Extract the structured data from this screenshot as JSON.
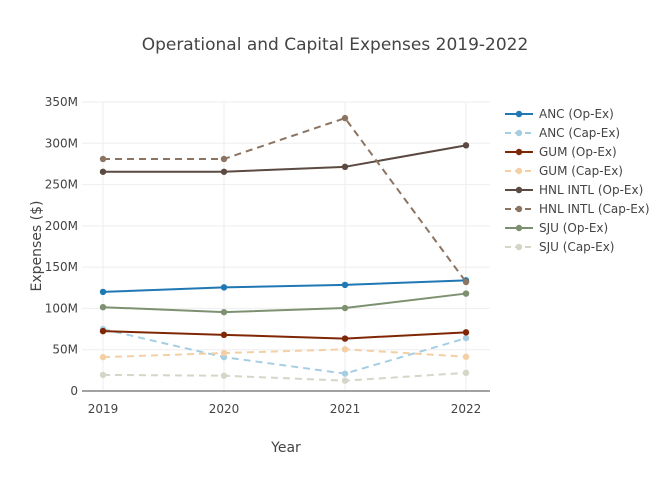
{
  "chart_data": {
    "type": "line",
    "title": "Operational and Capital Expenses 2019-2022",
    "xlabel": "Year",
    "ylabel": "Expenses ($)",
    "x": [
      2019,
      2020,
      2021,
      2022
    ],
    "x_tick_labels": [
      "2019",
      "2020",
      "2021",
      "2022"
    ],
    "ylim": [
      0,
      350000000
    ],
    "y_ticks": [
      0,
      50000000,
      100000000,
      150000000,
      200000000,
      250000000,
      300000000,
      350000000
    ],
    "y_tick_labels": [
      "0",
      "50M",
      "100M",
      "150M",
      "200M",
      "250M",
      "300M",
      "350M"
    ],
    "grid": true,
    "legend_position": "right",
    "series": [
      {
        "name": "ANC (Op-Ex)",
        "color": "#1f77b4",
        "dash": "solid",
        "values": [
          120000000,
          125500000,
          128500000,
          134000000
        ]
      },
      {
        "name": "ANC (Cap-Ex)",
        "color": "#a6cee3",
        "dash": "dashed",
        "values": [
          75000000,
          41000000,
          21000000,
          64000000
        ]
      },
      {
        "name": "GUM (Op-Ex)",
        "color": "#7f2704",
        "dash": "solid",
        "values": [
          72500000,
          68000000,
          63500000,
          71000000
        ]
      },
      {
        "name": "GUM (Cap-Ex)",
        "color": "#f4cfa3",
        "dash": "dashed",
        "values": [
          41000000,
          46000000,
          50500000,
          41500000
        ]
      },
      {
        "name": "HNL INTL (Op-Ex)",
        "color": "#5b4a42",
        "dash": "solid",
        "values": [
          265500000,
          265500000,
          271500000,
          297500000
        ]
      },
      {
        "name": "HNL INTL (Cap-Ex)",
        "color": "#8c7463",
        "dash": "dashed",
        "values": [
          281000000,
          281000000,
          330500000,
          132000000
        ]
      },
      {
        "name": "SJU (Op-Ex)",
        "color": "#7d9171",
        "dash": "solid",
        "values": [
          101500000,
          95500000,
          100500000,
          118000000
        ]
      },
      {
        "name": "SJU (Cap-Ex)",
        "color": "#d4d6c8",
        "dash": "dashed",
        "values": [
          19500000,
          18500000,
          12500000,
          22000000
        ]
      }
    ]
  }
}
